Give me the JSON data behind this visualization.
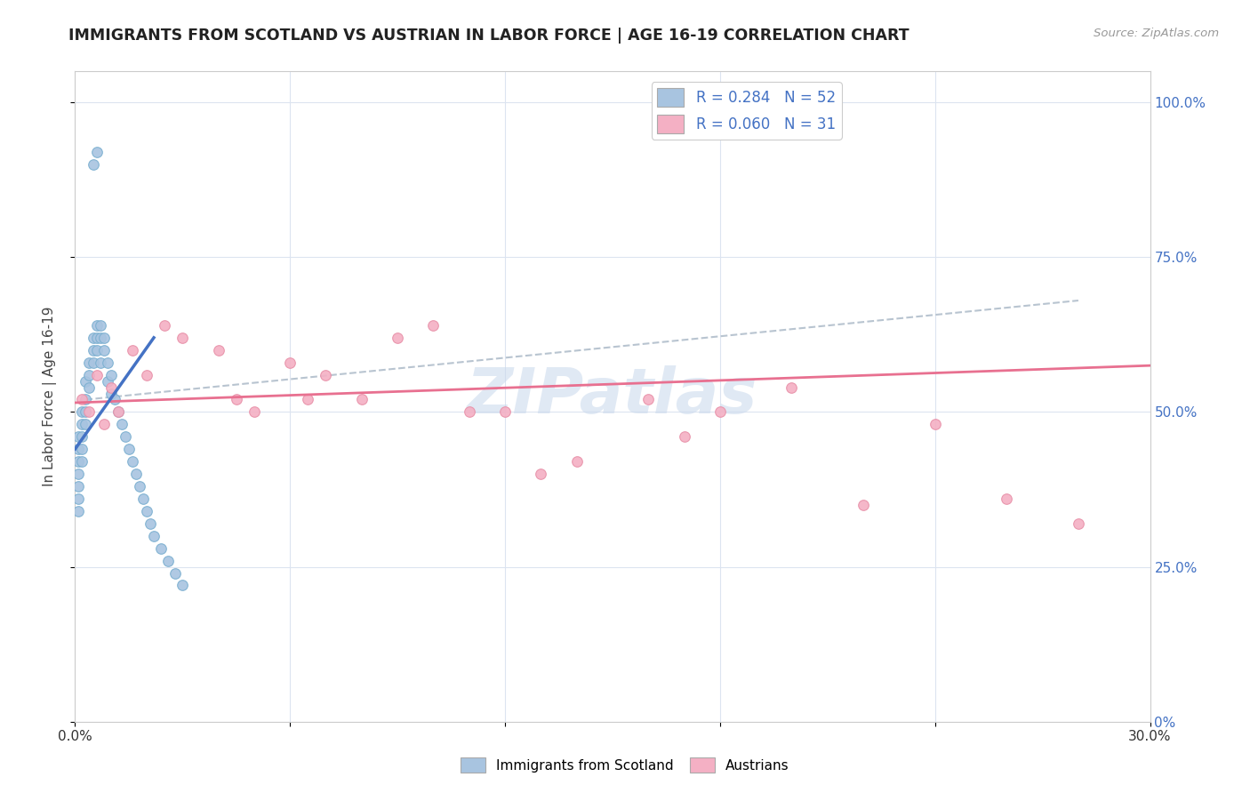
{
  "title": "IMMIGRANTS FROM SCOTLAND VS AUSTRIAN IN LABOR FORCE | AGE 16-19 CORRELATION CHART",
  "source": "Source: ZipAtlas.com",
  "ylabel": "In Labor Force | Age 16-19",
  "xlim": [
    0.0,
    0.3
  ],
  "ylim": [
    0.0,
    1.05
  ],
  "ytick_values": [
    0.0,
    0.25,
    0.5,
    0.75,
    1.0
  ],
  "ytick_labels_right": [
    "0%",
    "25.0%",
    "50.0%",
    "75.0%",
    "100.0%"
  ],
  "xtick_values": [
    0.0,
    0.06,
    0.12,
    0.18,
    0.24,
    0.3
  ],
  "xtick_labels": [
    "0.0%",
    "",
    "",
    "",
    "",
    "30.0%"
  ],
  "scotland_color": "#a8c4e0",
  "scotland_edge_color": "#7aafd0",
  "austria_color": "#f4b0c4",
  "austria_edge_color": "#e890a8",
  "scotland_line_color": "#4472c4",
  "austria_line_color": "#e87090",
  "dashed_line_color": "#b8c4d0",
  "legend_R_scotland": "0.284",
  "legend_N_scotland": "52",
  "legend_R_austria": "0.060",
  "legend_N_austria": "31",
  "background_color": "#ffffff",
  "grid_color": "#dce4f0",
  "right_ytick_color": "#4472c4",
  "watermark_color": "#c8d8ec",
  "scotland_x": [
    0.001,
    0.001,
    0.001,
    0.001,
    0.001,
    0.001,
    0.001,
    0.002,
    0.002,
    0.002,
    0.002,
    0.002,
    0.003,
    0.003,
    0.003,
    0.003,
    0.004,
    0.004,
    0.004,
    0.005,
    0.005,
    0.005,
    0.006,
    0.006,
    0.006,
    0.007,
    0.007,
    0.007,
    0.008,
    0.008,
    0.009,
    0.009,
    0.01,
    0.01,
    0.011,
    0.012,
    0.013,
    0.014,
    0.015,
    0.016,
    0.017,
    0.018,
    0.019,
    0.02,
    0.021,
    0.022,
    0.024,
    0.026,
    0.028,
    0.03,
    0.005,
    0.006
  ],
  "scotland_y": [
    0.44,
    0.46,
    0.42,
    0.4,
    0.38,
    0.36,
    0.34,
    0.5,
    0.48,
    0.46,
    0.44,
    0.42,
    0.55,
    0.52,
    0.5,
    0.48,
    0.58,
    0.56,
    0.54,
    0.62,
    0.6,
    0.58,
    0.64,
    0.62,
    0.6,
    0.64,
    0.62,
    0.58,
    0.62,
    0.6,
    0.58,
    0.55,
    0.56,
    0.53,
    0.52,
    0.5,
    0.48,
    0.46,
    0.44,
    0.42,
    0.4,
    0.38,
    0.36,
    0.34,
    0.32,
    0.3,
    0.28,
    0.26,
    0.24,
    0.22,
    0.9,
    0.92
  ],
  "austria_x": [
    0.002,
    0.004,
    0.006,
    0.008,
    0.01,
    0.012,
    0.016,
    0.02,
    0.025,
    0.03,
    0.04,
    0.05,
    0.06,
    0.07,
    0.08,
    0.09,
    0.1,
    0.11,
    0.12,
    0.14,
    0.16,
    0.18,
    0.2,
    0.22,
    0.24,
    0.26,
    0.28,
    0.045,
    0.065,
    0.13,
    0.17
  ],
  "austria_y": [
    0.52,
    0.5,
    0.56,
    0.48,
    0.54,
    0.5,
    0.6,
    0.56,
    0.64,
    0.62,
    0.6,
    0.5,
    0.58,
    0.56,
    0.52,
    0.62,
    0.64,
    0.5,
    0.5,
    0.42,
    0.52,
    0.5,
    0.54,
    0.35,
    0.48,
    0.36,
    0.32,
    0.52,
    0.52,
    0.4,
    0.46
  ],
  "scot_line_x": [
    0.0,
    0.022
  ],
  "scot_line_y": [
    0.44,
    0.62
  ],
  "aust_line_x": [
    0.0,
    0.3
  ],
  "aust_line_y": [
    0.515,
    0.575
  ],
  "dash_line_x": [
    0.003,
    0.28
  ],
  "dash_line_y": [
    0.52,
    0.68
  ]
}
